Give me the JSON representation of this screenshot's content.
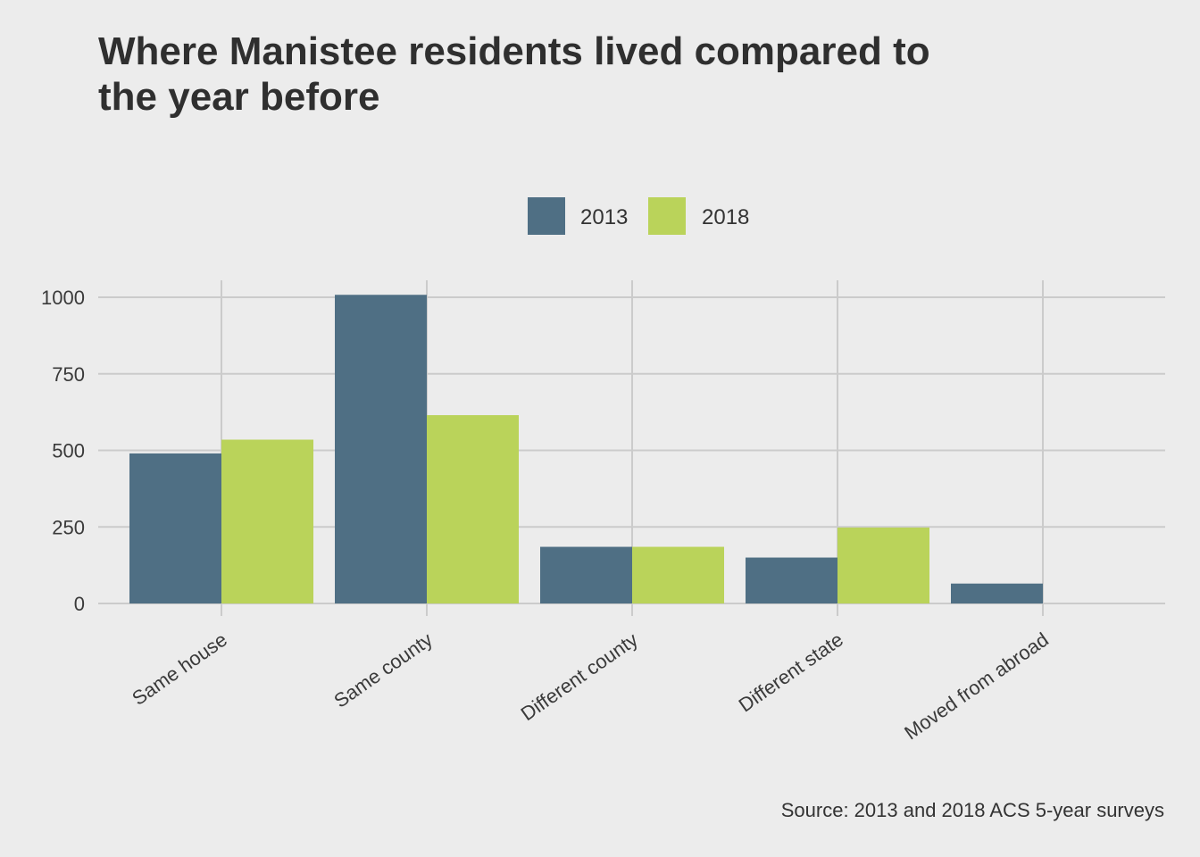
{
  "title": {
    "line1": "Where Manistee residents lived compared to",
    "line2": "the year before"
  },
  "caption": "Source: 2013 and 2018 ACS 5-year surveys",
  "colors": {
    "background": "#ececec",
    "grid": "#cbcbcb",
    "series_2013": "#4f6f84",
    "series_2018": "#bad35a"
  },
  "chart_data": {
    "type": "bar",
    "title": "Where Manistee residents lived compared to the year before",
    "categories": [
      "Same house",
      "Same county",
      "Different county",
      "Different state",
      "Moved from abroad"
    ],
    "series": [
      {
        "name": "2013",
        "values": [
          490,
          1008,
          185,
          150,
          65
        ]
      },
      {
        "name": "2018",
        "values": [
          535,
          615,
          185,
          248,
          0
        ]
      }
    ],
    "xlabel": "",
    "ylabel": "",
    "ylim": [
      0,
      1000
    ],
    "yticks": [
      0,
      250,
      500,
      750,
      1000
    ],
    "grid": true,
    "legend": "top-center"
  }
}
